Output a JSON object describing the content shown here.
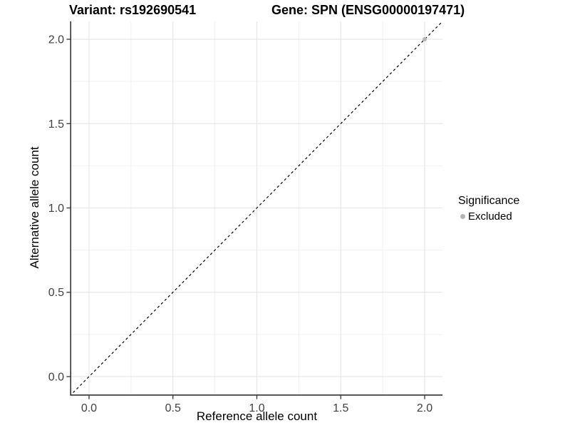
{
  "chart_data": {
    "type": "scatter",
    "title_left": "Variant: rs192690541",
    "title_right": "Gene: SPN (ENSG00000197471)",
    "xlabel": "Reference allele count",
    "ylabel": "Alternative allele count",
    "xlim": [
      -0.106,
      2.106
    ],
    "ylim": [
      -0.106,
      2.106
    ],
    "xticks": [
      0.0,
      0.5,
      1.0,
      1.5,
      2.0
    ],
    "yticks": [
      0.0,
      0.5,
      1.0,
      1.5,
      2.0
    ],
    "xtick_labels": [
      "0.0",
      "0.5",
      "1.0",
      "1.5",
      "2.0"
    ],
    "ytick_labels": [
      "0.0",
      "0.5",
      "1.0",
      "1.5",
      "2.0"
    ],
    "x_minor": [
      0.25,
      0.75,
      1.25,
      1.75
    ],
    "y_minor": [
      0.25,
      0.75,
      1.25,
      1.75
    ],
    "grid": true,
    "legend_position": "right",
    "identity_line": {
      "style": "dashed",
      "color": "#000000",
      "from": -0.2,
      "to": 2.3
    },
    "points": [
      {
        "x": 2.0,
        "y": 2.0,
        "series": "Excluded"
      }
    ],
    "legend": {
      "title": "Significance",
      "items": [
        {
          "label": "Excluded",
          "color": "#b5b5b5"
        }
      ]
    },
    "colors": {
      "background": "#ffffff",
      "grid_major": "#e4e4e4",
      "grid_minor": "#f1f1f1",
      "axis_line": "#333333",
      "tick_mark": "#333333",
      "tick_label": "#404040",
      "point": "#b5b5b5",
      "dashed_line": "#000000",
      "title_text": "#000000"
    }
  }
}
